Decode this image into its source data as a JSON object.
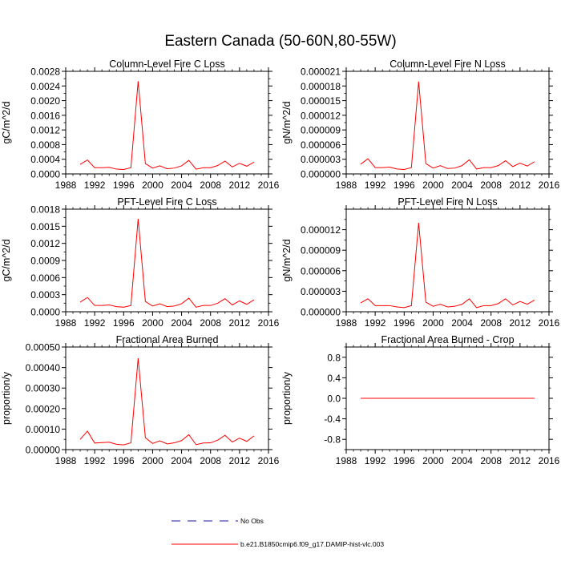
{
  "figure_title": "Eastern Canada (50-60N,80-55W)",
  "legend": [
    {
      "label": "No Obs",
      "color": "#1a1a99",
      "dash": true
    },
    {
      "label": "b.e21.B1850cmip6.f09_g17.DAMIP-hist-vlc.003",
      "color": "#ff0000",
      "dash": false
    }
  ],
  "chart_data": [
    {
      "type": "line",
      "title": "Column-Level Fire C Loss",
      "xlabel": "",
      "ylabel": "gC/m^2/d",
      "xlim": [
        1988,
        2016
      ],
      "ylim": [
        0,
        0.0028
      ],
      "xticks": [
        "1988",
        "1992",
        "1996",
        "2000",
        "2004",
        "2008",
        "2012",
        "2016"
      ],
      "yticks": [
        "0.0000",
        "0.0004",
        "0.0008",
        "0.0012",
        "0.0016",
        "0.0020",
        "0.0024",
        "0.0028"
      ],
      "series": [
        {
          "name": "b.e21.B1850cmip6.f09_g17.DAMIP-hist-vlc.003",
          "color": "#ff0000",
          "x": [
            1990,
            1991,
            1992,
            1993,
            1994,
            1995,
            1996,
            1997,
            1998,
            1999,
            2000,
            2001,
            2002,
            2003,
            2004,
            2005,
            2006,
            2007,
            2008,
            2009,
            2010,
            2011,
            2012,
            2013,
            2014
          ],
          "y": [
            0.00026,
            0.00038,
            0.00017,
            0.00017,
            0.00018,
            0.00013,
            0.00012,
            0.00017,
            0.00253,
            0.00028,
            0.00016,
            0.00022,
            0.00014,
            0.00016,
            0.00022,
            0.00037,
            0.00013,
            0.00017,
            0.00017,
            0.00023,
            0.00035,
            0.00019,
            0.00029,
            0.00021,
            0.00032
          ]
        }
      ]
    },
    {
      "type": "line",
      "title": "Column-Level Fire N Loss",
      "xlabel": "",
      "ylabel": "gN/m^2/d",
      "xlim": [
        1988,
        2016
      ],
      "ylim": [
        0,
        2.1e-05
      ],
      "xticks": [
        "1988",
        "1992",
        "1996",
        "2000",
        "2004",
        "2008",
        "2012",
        "2016"
      ],
      "yticks": [
        "0.000000",
        "0.000003",
        "0.000006",
        "0.000009",
        "0.000012",
        "0.000015",
        "0.000018",
        "0.000021"
      ],
      "series": [
        {
          "name": "b.e21.B1850cmip6.f09_g17.DAMIP-hist-vlc.003",
          "color": "#ff0000",
          "x": [
            1990,
            1991,
            1992,
            1993,
            1994,
            1995,
            1996,
            1997,
            1998,
            1999,
            2000,
            2001,
            2002,
            2003,
            2004,
            2005,
            2006,
            2007,
            2008,
            2009,
            2010,
            2011,
            2012,
            2013,
            2014
          ],
          "y": [
            2e-06,
            3.1e-06,
            1.3e-06,
            1.3e-06,
            1.4e-06,
            1e-06,
            9e-07,
            1.3e-06,
            1.89e-05,
            2.1e-06,
            1.2e-06,
            1.7e-06,
            1.1e-06,
            1.2e-06,
            1.7e-06,
            2.9e-06,
            1e-06,
            1.3e-06,
            1.3e-06,
            1.7e-06,
            2.7e-06,
            1.5e-06,
            2.2e-06,
            1.6e-06,
            2.5e-06
          ]
        }
      ]
    },
    {
      "type": "line",
      "title": "PFT-Level Fire C Loss",
      "xlabel": "",
      "ylabel": "gC/m^2/d",
      "xlim": [
        1988,
        2016
      ],
      "ylim": [
        0,
        0.0018
      ],
      "xticks": [
        "1988",
        "1992",
        "1996",
        "2000",
        "2004",
        "2008",
        "2012",
        "2016"
      ],
      "yticks": [
        "0.0000",
        "0.0003",
        "0.0006",
        "0.0009",
        "0.0012",
        "0.0015",
        "0.0018"
      ],
      "series": [
        {
          "name": "b.e21.B1850cmip6.f09_g17.DAMIP-hist-vlc.003",
          "color": "#ff0000",
          "x": [
            1990,
            1991,
            1992,
            1993,
            1994,
            1995,
            1996,
            1997,
            1998,
            1999,
            2000,
            2001,
            2002,
            2003,
            2004,
            2005,
            2006,
            2007,
            2008,
            2009,
            2010,
            2011,
            2012,
            2013,
            2014
          ],
          "y": [
            0.00017,
            0.00025,
            0.00011,
            0.00011,
            0.00012,
            9e-05,
            8e-05,
            0.00011,
            0.00163,
            0.00018,
            0.0001,
            0.00014,
            9e-05,
            0.0001,
            0.00014,
            0.00024,
            8e-05,
            0.00011,
            0.00011,
            0.00015,
            0.00023,
            0.00012,
            0.00019,
            0.00013,
            0.00021
          ]
        }
      ]
    },
    {
      "type": "line",
      "title": "PFT-Level Fire N Loss",
      "xlabel": "",
      "ylabel": "gN/m^2/d",
      "xlim": [
        1988,
        2016
      ],
      "ylim": [
        0,
        1.5e-05
      ],
      "xticks": [
        "1988",
        "1992",
        "1996",
        "2000",
        "2004",
        "2008",
        "2012",
        "2016"
      ],
      "yticks": [
        "0.000000",
        "0.000003",
        "0.000006",
        "0.000009",
        "0.000012"
      ],
      "series": [
        {
          "name": "b.e21.B1850cmip6.f09_g17.DAMIP-hist-vlc.003",
          "color": "#ff0000",
          "x": [
            1990,
            1991,
            1992,
            1993,
            1994,
            1995,
            1996,
            1997,
            1998,
            1999,
            2000,
            2001,
            2002,
            2003,
            2004,
            2005,
            2006,
            2007,
            2008,
            2009,
            2010,
            2011,
            2012,
            2013,
            2014
          ],
          "y": [
            1.3e-06,
            1.9e-06,
            9e-07,
            9e-07,
            9e-07,
            7e-07,
            6e-07,
            9e-07,
            1.3e-05,
            1.4e-06,
            8e-07,
            1.1e-06,
            7e-07,
            8e-07,
            1.1e-06,
            1.9e-06,
            6e-07,
            9e-07,
            9e-07,
            1.2e-06,
            1.9e-06,
            1e-06,
            1.5e-06,
            1.1e-06,
            1.7e-06
          ]
        }
      ]
    },
    {
      "type": "line",
      "title": "Fractional Area Burned",
      "xlabel": "",
      "ylabel": "proportion/y",
      "xlim": [
        1988,
        2016
      ],
      "ylim": [
        0,
        0.0005
      ],
      "xticks": [
        "1988",
        "1992",
        "1996",
        "2000",
        "2004",
        "2008",
        "2012",
        "2016"
      ],
      "yticks": [
        "0.00000",
        "0.00010",
        "0.00020",
        "0.00030",
        "0.00040",
        "0.00050"
      ],
      "series": [
        {
          "name": "b.e21.B1850cmip6.f09_g17.DAMIP-hist-vlc.003",
          "color": "#ff0000",
          "x": [
            1990,
            1991,
            1992,
            1993,
            1994,
            1995,
            1996,
            1997,
            1998,
            1999,
            2000,
            2001,
            2002,
            2003,
            2004,
            2005,
            2006,
            2007,
            2008,
            2009,
            2010,
            2011,
            2012,
            2013,
            2014
          ],
          "y": [
            5e-05,
            9e-05,
            3.2e-05,
            3.4e-05,
            3.6e-05,
            2.6e-05,
            2.3e-05,
            3.3e-05,
            0.000445,
            5.8e-05,
            3e-05,
            4.3e-05,
            2.8e-05,
            3.3e-05,
            4.4e-05,
            7.3e-05,
            2.4e-05,
            3.2e-05,
            3.3e-05,
            4.6e-05,
            7e-05,
            3.7e-05,
            5.6e-05,
            4e-05,
            6.7e-05
          ]
        }
      ]
    },
    {
      "type": "line",
      "title": "Fractional Area Burned - Crop",
      "xlabel": "",
      "ylabel": "proportion/y",
      "xlim": [
        1988,
        2016
      ],
      "ylim": [
        -1,
        1
      ],
      "xticks": [
        "1988",
        "1992",
        "1996",
        "2000",
        "2004",
        "2008",
        "2012",
        "2016"
      ],
      "yticks": [
        "-0.8",
        "-0.4",
        "0.0",
        "0.4",
        "0.8"
      ],
      "series": [
        {
          "name": "b.e21.B1850cmip6.f09_g17.DAMIP-hist-vlc.003",
          "color": "#ff0000",
          "x": [
            1990,
            1991,
            1992,
            1993,
            1994,
            1995,
            1996,
            1997,
            1998,
            1999,
            2000,
            2001,
            2002,
            2003,
            2004,
            2005,
            2006,
            2007,
            2008,
            2009,
            2010,
            2011,
            2012,
            2013,
            2014
          ],
          "y": [
            0,
            0,
            0,
            0,
            0,
            0,
            0,
            0,
            0,
            0,
            0,
            0,
            0,
            0,
            0,
            0,
            0,
            0,
            0,
            0,
            0,
            0,
            0,
            0,
            0
          ]
        }
      ]
    }
  ]
}
